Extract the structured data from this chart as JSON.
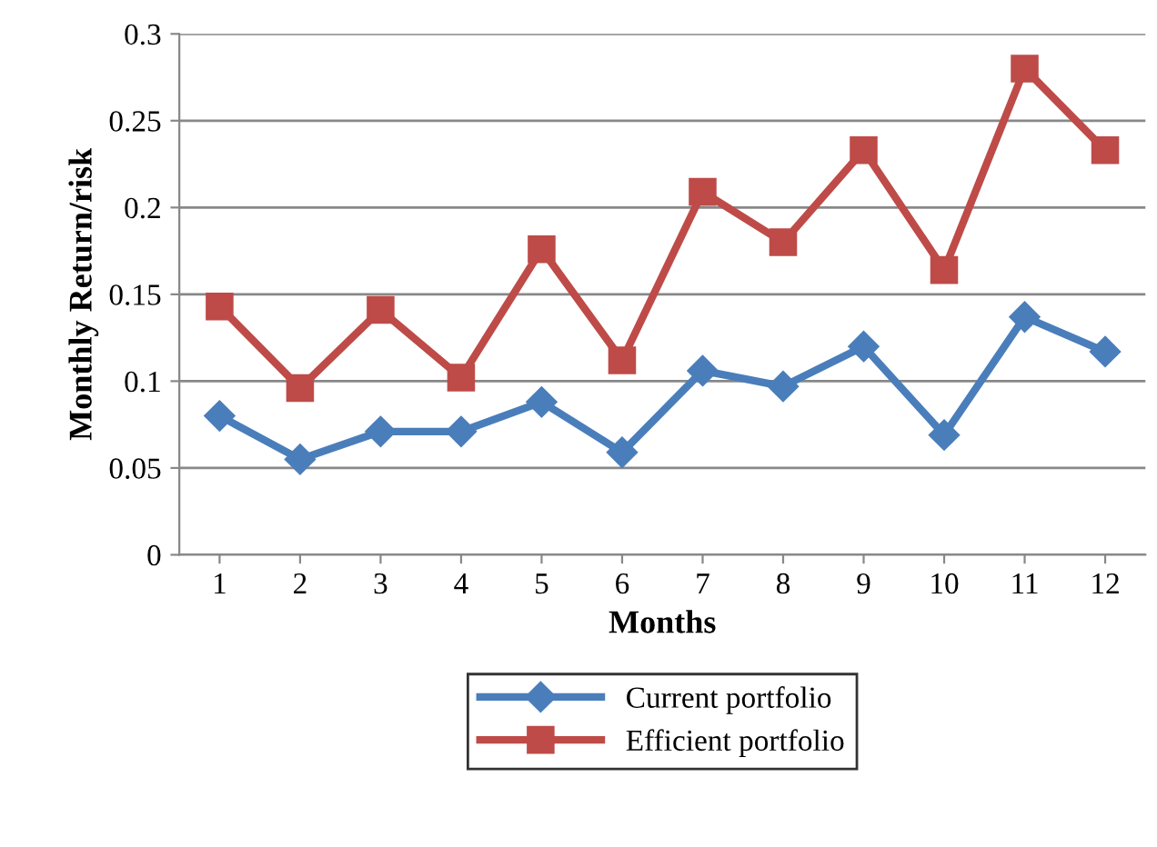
{
  "chart_data": {
    "type": "line",
    "xlabel": "Months",
    "ylabel": "Monthly Return/risk",
    "categories": [
      "1",
      "2",
      "3",
      "4",
      "5",
      "6",
      "7",
      "8",
      "9",
      "10",
      "11",
      "12"
    ],
    "series": [
      {
        "name": "Current portfolio",
        "color": "#4a7ebb",
        "marker": "diamond",
        "values": [
          0.08,
          0.055,
          0.071,
          0.071,
          0.088,
          0.059,
          0.106,
          0.097,
          0.12,
          0.069,
          0.137,
          0.117
        ]
      },
      {
        "name": "Efficient portfolio",
        "color": "#be4b48",
        "marker": "square",
        "values": [
          0.143,
          0.096,
          0.141,
          0.102,
          0.176,
          0.112,
          0.209,
          0.18,
          0.233,
          0.164,
          0.28,
          0.233
        ]
      }
    ],
    "ylim": [
      0,
      0.3
    ],
    "yticks": [
      0,
      0.05,
      0.1,
      0.15,
      0.2,
      0.25,
      0.3
    ],
    "grid": "y",
    "legend": "bottom",
    "line_style": "solid"
  }
}
